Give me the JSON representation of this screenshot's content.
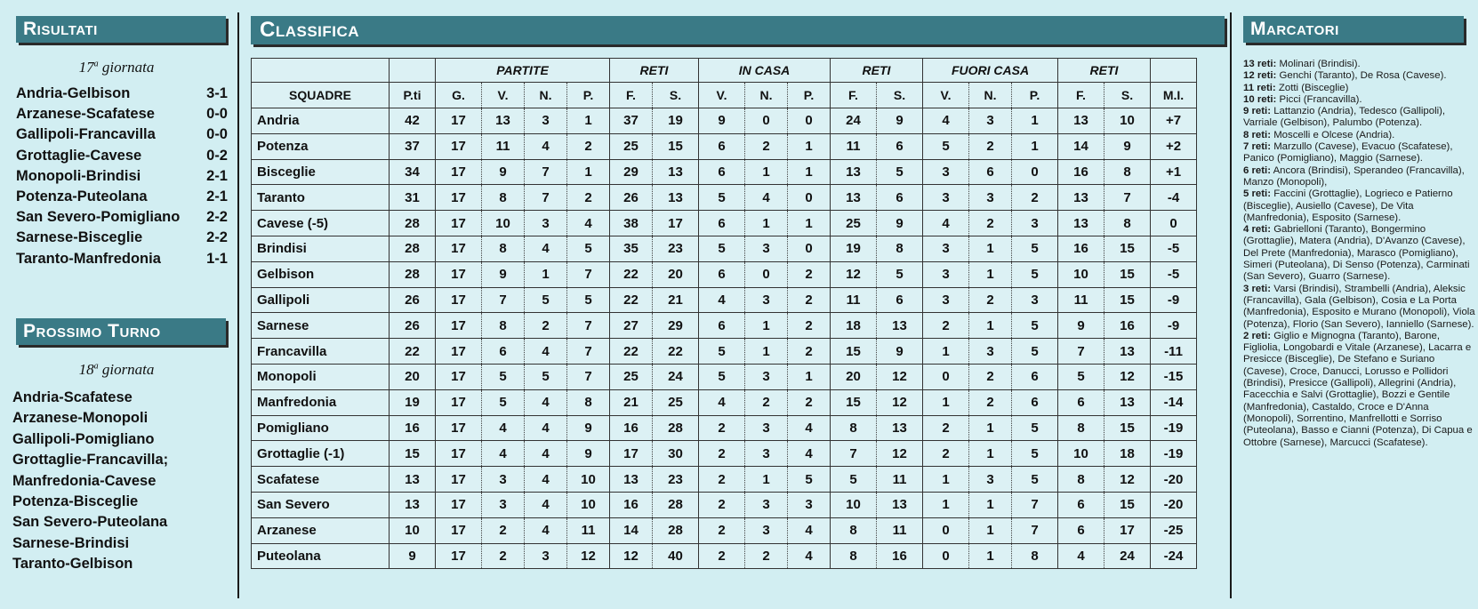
{
  "risultati": {
    "title": "Risultati",
    "giornata_num": "17",
    "giornata_sup": "a",
    "giornata_text": " giornata",
    "matches": [
      {
        "teams": "Andria-Gelbison",
        "score": "3-1"
      },
      {
        "teams": "Arzanese-Scafatese",
        "score": "0-0"
      },
      {
        "teams": "Gallipoli-Francavilla",
        "score": "0-0"
      },
      {
        "teams": "Grottaglie-Cavese",
        "score": "0-2"
      },
      {
        "teams": "Monopoli-Brindisi",
        "score": "2-1"
      },
      {
        "teams": "Potenza-Puteolana",
        "score": "2-1"
      },
      {
        "teams": "San Severo-Pomigliano",
        "score": "2-2"
      },
      {
        "teams": "Sarnese-Bisceglie",
        "score": "2-2"
      },
      {
        "teams": "Taranto-Manfredonia",
        "score": "1-1"
      }
    ]
  },
  "prossimo": {
    "title": "Prossimo Turno",
    "giornata_num": "18",
    "giornata_sup": "a",
    "giornata_text": " giornata",
    "matches": [
      "Andria-Scafatese",
      "Arzanese-Monopoli",
      "Gallipoli-Pomigliano",
      "Grottaglie-Francavilla;",
      "Manfredonia-Cavese",
      "Potenza-Bisceglie",
      "San Severo-Puteolana",
      "Sarnese-Brindisi",
      "Taranto-Gelbison"
    ]
  },
  "classifica": {
    "title": "Classifica",
    "groups": [
      "PARTITE",
      "RETI",
      "IN CASA",
      "RETI",
      "FUORI CASA",
      "RETI"
    ],
    "headers": [
      "SQUADRE",
      "P.ti",
      "G.",
      "V.",
      "N.",
      "P.",
      "F.",
      "S.",
      "V.",
      "N.",
      "P.",
      "F.",
      "S.",
      "V.",
      "N.",
      "P.",
      "F.",
      "S.",
      "M.I."
    ],
    "rows": [
      [
        "Andria",
        "42",
        "17",
        "13",
        "3",
        "1",
        "37",
        "19",
        "9",
        "0",
        "0",
        "24",
        "9",
        "4",
        "3",
        "1",
        "13",
        "10",
        "+7"
      ],
      [
        "Potenza",
        "37",
        "17",
        "11",
        "4",
        "2",
        "25",
        "15",
        "6",
        "2",
        "1",
        "11",
        "6",
        "5",
        "2",
        "1",
        "14",
        "9",
        "+2"
      ],
      [
        "Bisceglie",
        "34",
        "17",
        "9",
        "7",
        "1",
        "29",
        "13",
        "6",
        "1",
        "1",
        "13",
        "5",
        "3",
        "6",
        "0",
        "16",
        "8",
        "+1"
      ],
      [
        "Taranto",
        "31",
        "17",
        "8",
        "7",
        "2",
        "26",
        "13",
        "5",
        "4",
        "0",
        "13",
        "6",
        "3",
        "3",
        "2",
        "13",
        "7",
        "-4"
      ],
      [
        "Cavese (-5)",
        "28",
        "17",
        "10",
        "3",
        "4",
        "38",
        "17",
        "6",
        "1",
        "1",
        "25",
        "9",
        "4",
        "2",
        "3",
        "13",
        "8",
        "0"
      ],
      [
        "Brindisi",
        "28",
        "17",
        "8",
        "4",
        "5",
        "35",
        "23",
        "5",
        "3",
        "0",
        "19",
        "8",
        "3",
        "1",
        "5",
        "16",
        "15",
        "-5"
      ],
      [
        "Gelbison",
        "28",
        "17",
        "9",
        "1",
        "7",
        "22",
        "20",
        "6",
        "0",
        "2",
        "12",
        "5",
        "3",
        "1",
        "5",
        "10",
        "15",
        "-5"
      ],
      [
        "Gallipoli",
        "26",
        "17",
        "7",
        "5",
        "5",
        "22",
        "21",
        "4",
        "3",
        "2",
        "11",
        "6",
        "3",
        "2",
        "3",
        "11",
        "15",
        "-9"
      ],
      [
        "Sarnese",
        "26",
        "17",
        "8",
        "2",
        "7",
        "27",
        "29",
        "6",
        "1",
        "2",
        "18",
        "13",
        "2",
        "1",
        "5",
        "9",
        "16",
        "-9"
      ],
      [
        "Francavilla",
        "22",
        "17",
        "6",
        "4",
        "7",
        "22",
        "22",
        "5",
        "1",
        "2",
        "15",
        "9",
        "1",
        "3",
        "5",
        "7",
        "13",
        "-11"
      ],
      [
        "Monopoli",
        "20",
        "17",
        "5",
        "5",
        "7",
        "25",
        "24",
        "5",
        "3",
        "1",
        "20",
        "12",
        "0",
        "2",
        "6",
        "5",
        "12",
        "-15"
      ],
      [
        "Manfredonia",
        "19",
        "17",
        "5",
        "4",
        "8",
        "21",
        "25",
        "4",
        "2",
        "2",
        "15",
        "12",
        "1",
        "2",
        "6",
        "6",
        "13",
        "-14"
      ],
      [
        "Pomigliano",
        "16",
        "17",
        "4",
        "4",
        "9",
        "16",
        "28",
        "2",
        "3",
        "4",
        "8",
        "13",
        "2",
        "1",
        "5",
        "8",
        "15",
        "-19"
      ],
      [
        "Grottaglie (-1)",
        "15",
        "17",
        "4",
        "4",
        "9",
        "17",
        "30",
        "2",
        "3",
        "4",
        "7",
        "12",
        "2",
        "1",
        "5",
        "10",
        "18",
        "-19"
      ],
      [
        "Scafatese",
        "13",
        "17",
        "3",
        "4",
        "10",
        "13",
        "23",
        "2",
        "1",
        "5",
        "5",
        "11",
        "1",
        "3",
        "5",
        "8",
        "12",
        "-20"
      ],
      [
        "San Severo",
        "13",
        "17",
        "3",
        "4",
        "10",
        "16",
        "28",
        "2",
        "3",
        "3",
        "10",
        "13",
        "1",
        "1",
        "7",
        "6",
        "15",
        "-20"
      ],
      [
        "Arzanese",
        "10",
        "17",
        "2",
        "4",
        "11",
        "14",
        "28",
        "2",
        "3",
        "4",
        "8",
        "11",
        "0",
        "1",
        "7",
        "6",
        "17",
        "-25"
      ],
      [
        "Puteolana",
        "9",
        "17",
        "2",
        "3",
        "12",
        "12",
        "40",
        "2",
        "2",
        "4",
        "8",
        "16",
        "0",
        "1",
        "8",
        "4",
        "24",
        "-24"
      ]
    ]
  },
  "marcatori": {
    "title": "Marcatori",
    "entries": [
      {
        "head": "13 reti:",
        "text": " Molinari (Brindisi)."
      },
      {
        "head": "12 reti:",
        "text": " Genchi (Taranto), De Rosa (Cavese)."
      },
      {
        "head": "11 reti:",
        "text": " Zotti (Bisceglie)"
      },
      {
        "head": "10 reti:",
        "text": " Picci (Francavilla)."
      },
      {
        "head": "9 reti:",
        "text": " Lattanzio (Andria), Tedesco (Gallipoli), Varriale (Gelbison), Palumbo (Potenza)."
      },
      {
        "head": "8 reti:",
        "text": " Moscelli e Olcese (Andria)."
      },
      {
        "head": "7 reti:",
        "text": " Marzullo (Cavese), Evacuo (Scafatese), Panico (Pomigliano), Maggio (Sarnese)."
      },
      {
        "head": "6 reti:",
        "text": " Ancora (Brindisi), Sperandeo (Francavilla), Manzo (Monopoli),"
      },
      {
        "head": "5 reti:",
        "text": " Faccini (Grottaglie), Logrieco e Patierno (Bisceglie), Ausiello (Cavese), De Vita (Manfredonia), Esposito (Sarnese)."
      },
      {
        "head": "4 reti:",
        "text": " Gabrielloni (Taranto), Bongermino (Grottaglie), Matera (Andria), D'Avanzo (Cavese), Del Prete (Manfredonia), Marasco (Pomigliano), Simeri (Puteolana), Di Senso (Potenza), Carminati (San Severo), Guarro (Sarnese)."
      },
      {
        "head": "3 reti:",
        "text": " Varsi (Brindisi), Strambelli (Andria), Aleksic (Francavilla), Gala (Gelbison), Cosia e La Porta (Manfredonia), Esposito e Murano (Monopoli), Viola (Potenza), Florio (San Severo), Ianniello (Sarnese)."
      },
      {
        "head": "2 reti:",
        "text": " Giglio e Mignogna (Taranto), Barone, Figliolia, Longobardi e Vitale (Arzanese), Lacarra e Presicce (Bisceglie), De Stefano e Suriano (Cavese), Croce, Danucci, Lorusso e Pollidori (Brindisi), Presicce (Gallipoli), Allegrini (Andria), Facecchia e Salvi (Grottaglie), Bozzi e Gentile (Manfredonia), Castaldo, Croce e D'Anna (Monopoli), Sorrentino, Manfrellotti e Sorriso (Puteolana), Basso e Cianni (Potenza), Di Capua e Ottobre (Sarnese), Marcucci (Scafatese)."
      }
    ]
  }
}
